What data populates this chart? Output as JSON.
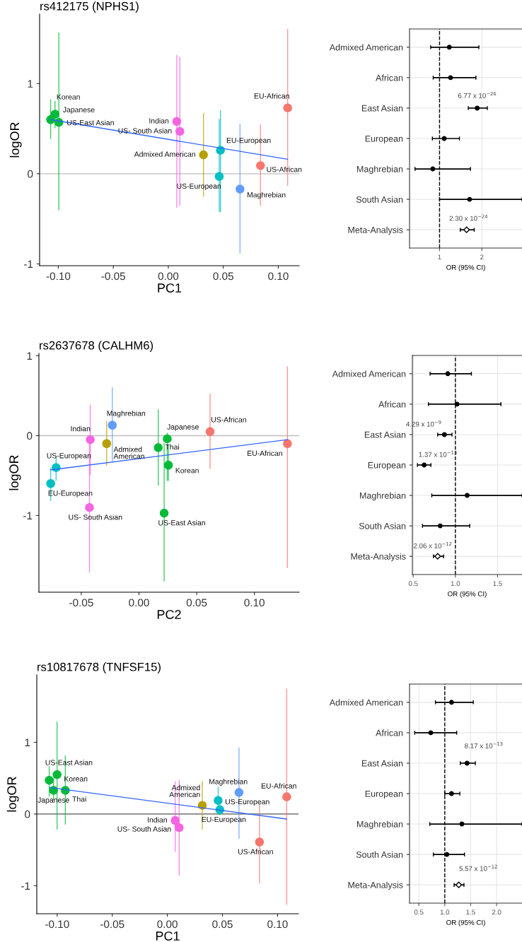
{
  "chart_data": [
    {
      "type": "scatter",
      "title": "rs412175 (NPHS1)",
      "xlabel": "PC1",
      "ylabel": "logOR",
      "grid": false,
      "xlim": [
        -0.117,
        0.119
      ],
      "ylim": [
        -1.02,
        1.77
      ],
      "xticks": [
        {
          "value": -0.1,
          "label": "-0.10"
        },
        {
          "value": -0.05,
          "label": "-0.05"
        },
        {
          "value": 0,
          "label": "0.00"
        },
        {
          "value": 0.05,
          "label": "0.05"
        },
        {
          "value": 0.1,
          "label": "0.10"
        }
      ],
      "yticks": [
        -1,
        0,
        1
      ],
      "ref_lines": [
        {
          "axis": "y",
          "value": 0,
          "color": "#bebebe"
        }
      ],
      "series": [
        {
          "type": "scatter",
          "marker": "circle",
          "x": [
            -0.107,
            -0.103,
            -0.0995,
            0.0077,
            0.0105,
            0.032,
            0.0474,
            0.0463,
            0.0652,
            0.0838,
            0.1085
          ],
          "values": [
            0.6,
            0.66,
            0.57,
            0.58,
            0.47,
            0.21,
            0.26,
            -0.03,
            -0.17,
            0.09,
            0.73
          ],
          "colors": [
            "#00ba38",
            "#00ba38",
            "#00ba38",
            "#f564e3",
            "#f564e3",
            "#b79f00",
            "#00bfc4",
            "#00bfc4",
            "#619cff",
            "#f8766d",
            "#f8766d"
          ],
          "errors": [
            [
              0.39,
              0.82
            ],
            [
              0.51,
              0.8
            ],
            [
              -0.4,
              1.56
            ],
            [
              -0.37,
              1.31
            ],
            [
              -0.35,
              1.29
            ],
            [
              -0.25,
              0.67
            ],
            [
              -0.42,
              0.7
            ],
            [
              -0.42,
              0.6
            ],
            [
              -0.88,
              0.55
            ],
            [
              -0.35,
              0.54
            ],
            [
              -0.13,
              1.6
            ]
          ]
        },
        {
          "type": "line",
          "x": [
            -0.107,
            0.1085
          ],
          "values": [
            0.6,
            0.16
          ],
          "color": "#3366ff"
        }
      ],
      "annotations": [
        {
          "text": "Korean",
          "x": -0.107,
          "y": 0.6
        },
        {
          "text": "Japanese",
          "x": -0.103,
          "y": 0.66
        },
        {
          "text": "US-East Asian",
          "x": -0.0995,
          "y": 0.57
        },
        {
          "text": "Indian",
          "x": 0.0077,
          "y": 0.58
        },
        {
          "text": "US- South Asian",
          "x": 0.0105,
          "y": 0.47
        },
        {
          "text": "Admixed American",
          "x": 0.032,
          "y": 0.21
        },
        {
          "text": "EU-European",
          "x": 0.0474,
          "y": 0.26
        },
        {
          "text": "US-European",
          "x": 0.0463,
          "y": -0.03
        },
        {
          "text": "Maghrebian",
          "x": 0.0652,
          "y": -0.17
        },
        {
          "text": "US-African",
          "x": 0.0838,
          "y": 0.09
        },
        {
          "text": "EU-African",
          "x": 0.1085,
          "y": 0.73
        }
      ]
    },
    {
      "type": "scatter",
      "orientation": "horizontal",
      "xlabel": "OR (95% CI)",
      "grid": true,
      "categories": [
        "Admixed American",
        "African",
        "East Asian",
        "European",
        "Maghrebian",
        "South Asian",
        "Meta-Analysis"
      ],
      "xlim": [
        0.29,
        2.95
      ],
      "xticks": [
        1,
        2
      ],
      "ref_lines": [
        {
          "axis": "x",
          "value": 1,
          "color": "#000000",
          "line_style": "dashed"
        }
      ],
      "series": [
        {
          "marker": "circle",
          "color": "#000000",
          "values": [
            1.23,
            1.26,
            1.89,
            1.11,
            0.84,
            1.71,
            null
          ],
          "errors": [
            [
              0.79,
              1.93
            ],
            [
              0.85,
              1.86
            ],
            [
              1.68,
              2.13
            ],
            [
              0.83,
              1.47
            ],
            [
              0.42,
              1.73
            ],
            [
              1.0,
              2.95
            ],
            null
          ]
        },
        {
          "marker": "diamond",
          "color": "#000000",
          "values": [
            null,
            null,
            null,
            null,
            null,
            null,
            1.64
          ],
          "errors": [
            null,
            null,
            null,
            null,
            null,
            null,
            [
              1.49,
              1.82
            ]
          ]
        }
      ],
      "annotations": [
        {
          "text": "6.77 x 10$^{−26}$",
          "x": 1.89,
          "y": "East Asian"
        },
        {
          "text": "2.30 x 10$^{−24}$",
          "x": 1.64,
          "y": "Meta-Analysis"
        }
      ]
    },
    {
      "type": "scatter",
      "title": "rs2637678 (CALHM6)",
      "xlabel": "PC2",
      "ylabel": "logOR",
      "grid": false,
      "xlim": [
        -0.0867,
        0.1388
      ],
      "ylim": [
        -1.96,
        1.03
      ],
      "xticks": [
        {
          "value": -0.05,
          "label": "-0.05"
        },
        {
          "value": 0,
          "label": "0.00"
        },
        {
          "value": 0.05,
          "label": "0.05"
        },
        {
          "value": 0.1,
          "label": "0.10"
        }
      ],
      "yticks": [
        -1,
        0,
        1
      ],
      "ref_lines": [
        {
          "axis": "y",
          "value": 0,
          "color": "#bebebe"
        }
      ],
      "series": [
        {
          "type": "scatter",
          "marker": "circle",
          "x": [
            -0.0231,
            -0.0422,
            -0.028,
            -0.0429,
            -0.0718,
            -0.0765,
            0.0167,
            0.0245,
            0.0255,
            0.0218,
            0.0616,
            0.1286
          ],
          "values": [
            0.13,
            -0.05,
            -0.1,
            -0.9,
            -0.4,
            -0.6,
            -0.15,
            -0.04,
            -0.37,
            -0.97,
            0.05,
            -0.1
          ],
          "colors": [
            "#619cff",
            "#f564e3",
            "#b79f00",
            "#f564e3",
            "#00bfc4",
            "#00bfc4",
            "#00ba38",
            "#00ba38",
            "#00ba38",
            "#00ba38",
            "#f8766d",
            "#f8766d"
          ],
          "errors": [
            [
              -0.33,
              0.6
            ],
            [
              -0.49,
              0.38
            ],
            [
              -0.37,
              0.18
            ],
            [
              -1.71,
              -0.09
            ],
            [
              -0.56,
              -0.27
            ],
            [
              -0.81,
              -0.41
            ],
            [
              -0.62,
              0.32
            ],
            [
              -0.56,
              0.03
            ],
            [
              -0.56,
              -0.12
            ],
            [
              -1.82,
              -0.1
            ],
            [
              -0.41,
              0.52
            ],
            [
              -1.65,
              0.86
            ]
          ]
        },
        {
          "type": "line",
          "x": [
            -0.0765,
            0.1286
          ],
          "values": [
            -0.43,
            -0.05
          ],
          "color": "#3366ff"
        }
      ],
      "annotations": [
        {
          "text": "Maghrebian",
          "x": -0.0231,
          "y": 0.13
        },
        {
          "text": "Indian",
          "x": -0.0422,
          "y": -0.05
        },
        {
          "text": "Admixed\nAmerican",
          "x": -0.028,
          "y": -0.1
        },
        {
          "text": "US- South Asian",
          "x": -0.0429,
          "y": -0.9
        },
        {
          "text": "US-European",
          "x": -0.0718,
          "y": -0.4
        },
        {
          "text": "EU-European",
          "x": -0.0765,
          "y": -0.6
        },
        {
          "text": "Thai",
          "x": 0.0167,
          "y": -0.15
        },
        {
          "text": "Japanese",
          "x": 0.0245,
          "y": -0.04
        },
        {
          "text": "Korean",
          "x": 0.0255,
          "y": -0.37
        },
        {
          "text": "US-East Asian",
          "x": 0.0218,
          "y": -0.97
        },
        {
          "text": "US-African",
          "x": 0.0616,
          "y": 0.05
        },
        {
          "text": "EU-African",
          "x": 0.1286,
          "y": -0.1
        }
      ]
    },
    {
      "type": "scatter",
      "orientation": "horizontal",
      "xlabel": "OR (95% CI)",
      "grid": true,
      "categories": [
        "Admixed American",
        "African",
        "East Asian",
        "European",
        "Maghrebian",
        "South Asian",
        "Meta-Analysis"
      ],
      "xlim": [
        0.49,
        1.79
      ],
      "xticks": [
        0.5,
        {
          "value": 1,
          "label": "1.0"
        },
        1.5
      ],
      "ref_lines": [
        {
          "axis": "x",
          "value": 1,
          "color": "#000000",
          "line_style": "dashed"
        }
      ],
      "series": [
        {
          "marker": "circle",
          "color": "#000000",
          "values": [
            0.91,
            1.02,
            0.87,
            0.63,
            1.14,
            0.82,
            null
          ],
          "errors": [
            [
              0.7,
              1.19
            ],
            [
              0.68,
              1.54
            ],
            [
              0.79,
              0.96
            ],
            [
              0.55,
              0.71
            ],
            [
              0.72,
              1.79
            ],
            [
              0.61,
              1.17
            ],
            null
          ]
        },
        {
          "marker": "diamond",
          "color": "#000000",
          "values": [
            null,
            null,
            null,
            null,
            null,
            null,
            0.79
          ],
          "errors": [
            null,
            null,
            null,
            null,
            null,
            null,
            [
              0.74,
              0.86
            ]
          ]
        }
      ],
      "annotations": [
        {
          "text": "4.29 x 10$^{−9}$",
          "x": 0.87,
          "y": "East Asian"
        },
        {
          "text": "1.37 x 10$^{−13}$",
          "x": 0.63,
          "y": "European"
        },
        {
          "text": "2.06 x 10$^{−12}$",
          "x": 0.79,
          "y": "Meta-Analysis"
        }
      ]
    },
    {
      "type": "scatter",
      "title": "rs10817678 (TNFSF15)",
      "xlabel": "PC1",
      "ylabel": "logOR",
      "grid": false,
      "xlim": [
        -0.1185,
        0.119
      ],
      "ylim": [
        -1.39,
        1.94
      ],
      "xticks": [
        {
          "value": -0.1,
          "label": "-0.10"
        },
        {
          "value": -0.05,
          "label": "-0.05"
        },
        {
          "value": 0,
          "label": "0.00"
        },
        {
          "value": 0.05,
          "label": "0.05"
        },
        {
          "value": 0.1,
          "label": "0.10"
        }
      ],
      "yticks": [
        -1,
        0,
        1
      ],
      "ref_lines": [
        {
          "axis": "y",
          "value": 0,
          "color": "#555555"
        }
      ],
      "series": [
        {
          "type": "scatter",
          "marker": "circle",
          "x": [
            -0.1072,
            -0.1001,
            -0.1033,
            -0.0926,
            0.0071,
            0.0107,
            0.0317,
            0.0461,
            0.0476,
            0.065,
            0.0836,
            0.1083
          ],
          "values": [
            0.47,
            0.55,
            0.33,
            0.33,
            -0.09,
            -0.19,
            0.12,
            0.19,
            0.06,
            0.3,
            -0.39,
            0.24
          ],
          "colors": [
            "#00ba38",
            "#00ba38",
            "#00ba38",
            "#00ba38",
            "#f564e3",
            "#f564e3",
            "#b79f00",
            "#00bfc4",
            "#00bfc4",
            "#619cff",
            "#f8766d",
            "#f8766d"
          ],
          "errors": [
            [
              0.25,
              0.66
            ],
            [
              -0.21,
              1.28
            ],
            [
              0.2,
              0.5
            ],
            [
              -0.14,
              0.81
            ],
            [
              -0.52,
              0.45
            ],
            [
              -0.85,
              0.47
            ],
            [
              -0.21,
              0.45
            ],
            [
              0.07,
              0.37
            ],
            [
              -0.01,
              0.17
            ],
            [
              -0.34,
              0.92
            ],
            [
              -0.96,
              0.14
            ],
            [
              -1.26,
              1.74
            ]
          ]
        },
        {
          "type": "line",
          "x": [
            -0.1068,
            0.1083
          ],
          "values": [
            0.37,
            -0.07
          ],
          "color": "#3366ff"
        }
      ],
      "annotations": [
        {
          "text": "US-East Asian",
          "x": -0.1072,
          "y": 0.47
        },
        {
          "text": "Korean",
          "x": -0.1001,
          "y": 0.55
        },
        {
          "text": "Japanese",
          "x": -0.1033,
          "y": 0.33
        },
        {
          "text": "Thai",
          "x": -0.0926,
          "y": 0.33
        },
        {
          "text": "Indian",
          "x": 0.0071,
          "y": -0.09
        },
        {
          "text": "US- South Asian",
          "x": 0.0107,
          "y": -0.19
        },
        {
          "text": "Admixed\nAmerican",
          "x": 0.0317,
          "y": 0.12
        },
        {
          "text": "US-European",
          "x": 0.0461,
          "y": 0.19
        },
        {
          "text": "EU-European",
          "x": 0.0476,
          "y": 0.06
        },
        {
          "text": "Maghrebian",
          "x": 0.065,
          "y": 0.3
        },
        {
          "text": "US-African",
          "x": 0.0836,
          "y": -0.39
        },
        {
          "text": "EU-African",
          "x": 0.1083,
          "y": 0.24
        }
      ]
    },
    {
      "type": "scatter",
      "orientation": "horizontal",
      "xlabel": "OR (95% CI)",
      "grid": true,
      "categories": [
        "Admixed American",
        "African",
        "East Asian",
        "European",
        "Maghrebian",
        "South Asian",
        "Meta-Analysis"
      ],
      "xlim": [
        0.32,
        2.49
      ],
      "xticks": [
        0.5,
        {
          "value": 1,
          "label": "1.0"
        },
        1.5,
        {
          "value": 2,
          "label": "2.0"
        }
      ],
      "ref_lines": [
        {
          "axis": "x",
          "value": 1,
          "color": "#000000",
          "line_style": "dashed"
        }
      ],
      "series": [
        {
          "marker": "circle",
          "color": "#000000",
          "values": [
            1.13,
            0.73,
            1.43,
            1.13,
            1.33,
            1.04,
            null
          ],
          "errors": [
            [
              0.82,
              1.55
            ],
            [
              0.42,
              1.23
            ],
            [
              1.3,
              1.59
            ],
            [
              1.0,
              1.29
            ],
            [
              0.71,
              2.49
            ],
            [
              0.78,
              1.38
            ],
            null
          ]
        },
        {
          "marker": "diamond",
          "color": "#000000",
          "values": [
            null,
            null,
            null,
            null,
            null,
            null,
            1.27
          ],
          "errors": [
            null,
            null,
            null,
            null,
            null,
            null,
            [
              1.18,
              1.37
            ]
          ]
        }
      ],
      "annotations": [
        {
          "text": "8.17 x 10$^{−13}$",
          "x": 1.43,
          "y": "East Asian"
        },
        {
          "text": "5.57 x 10$^{−12}$",
          "x": 1.27,
          "y": "Meta-Analysis"
        }
      ]
    }
  ]
}
